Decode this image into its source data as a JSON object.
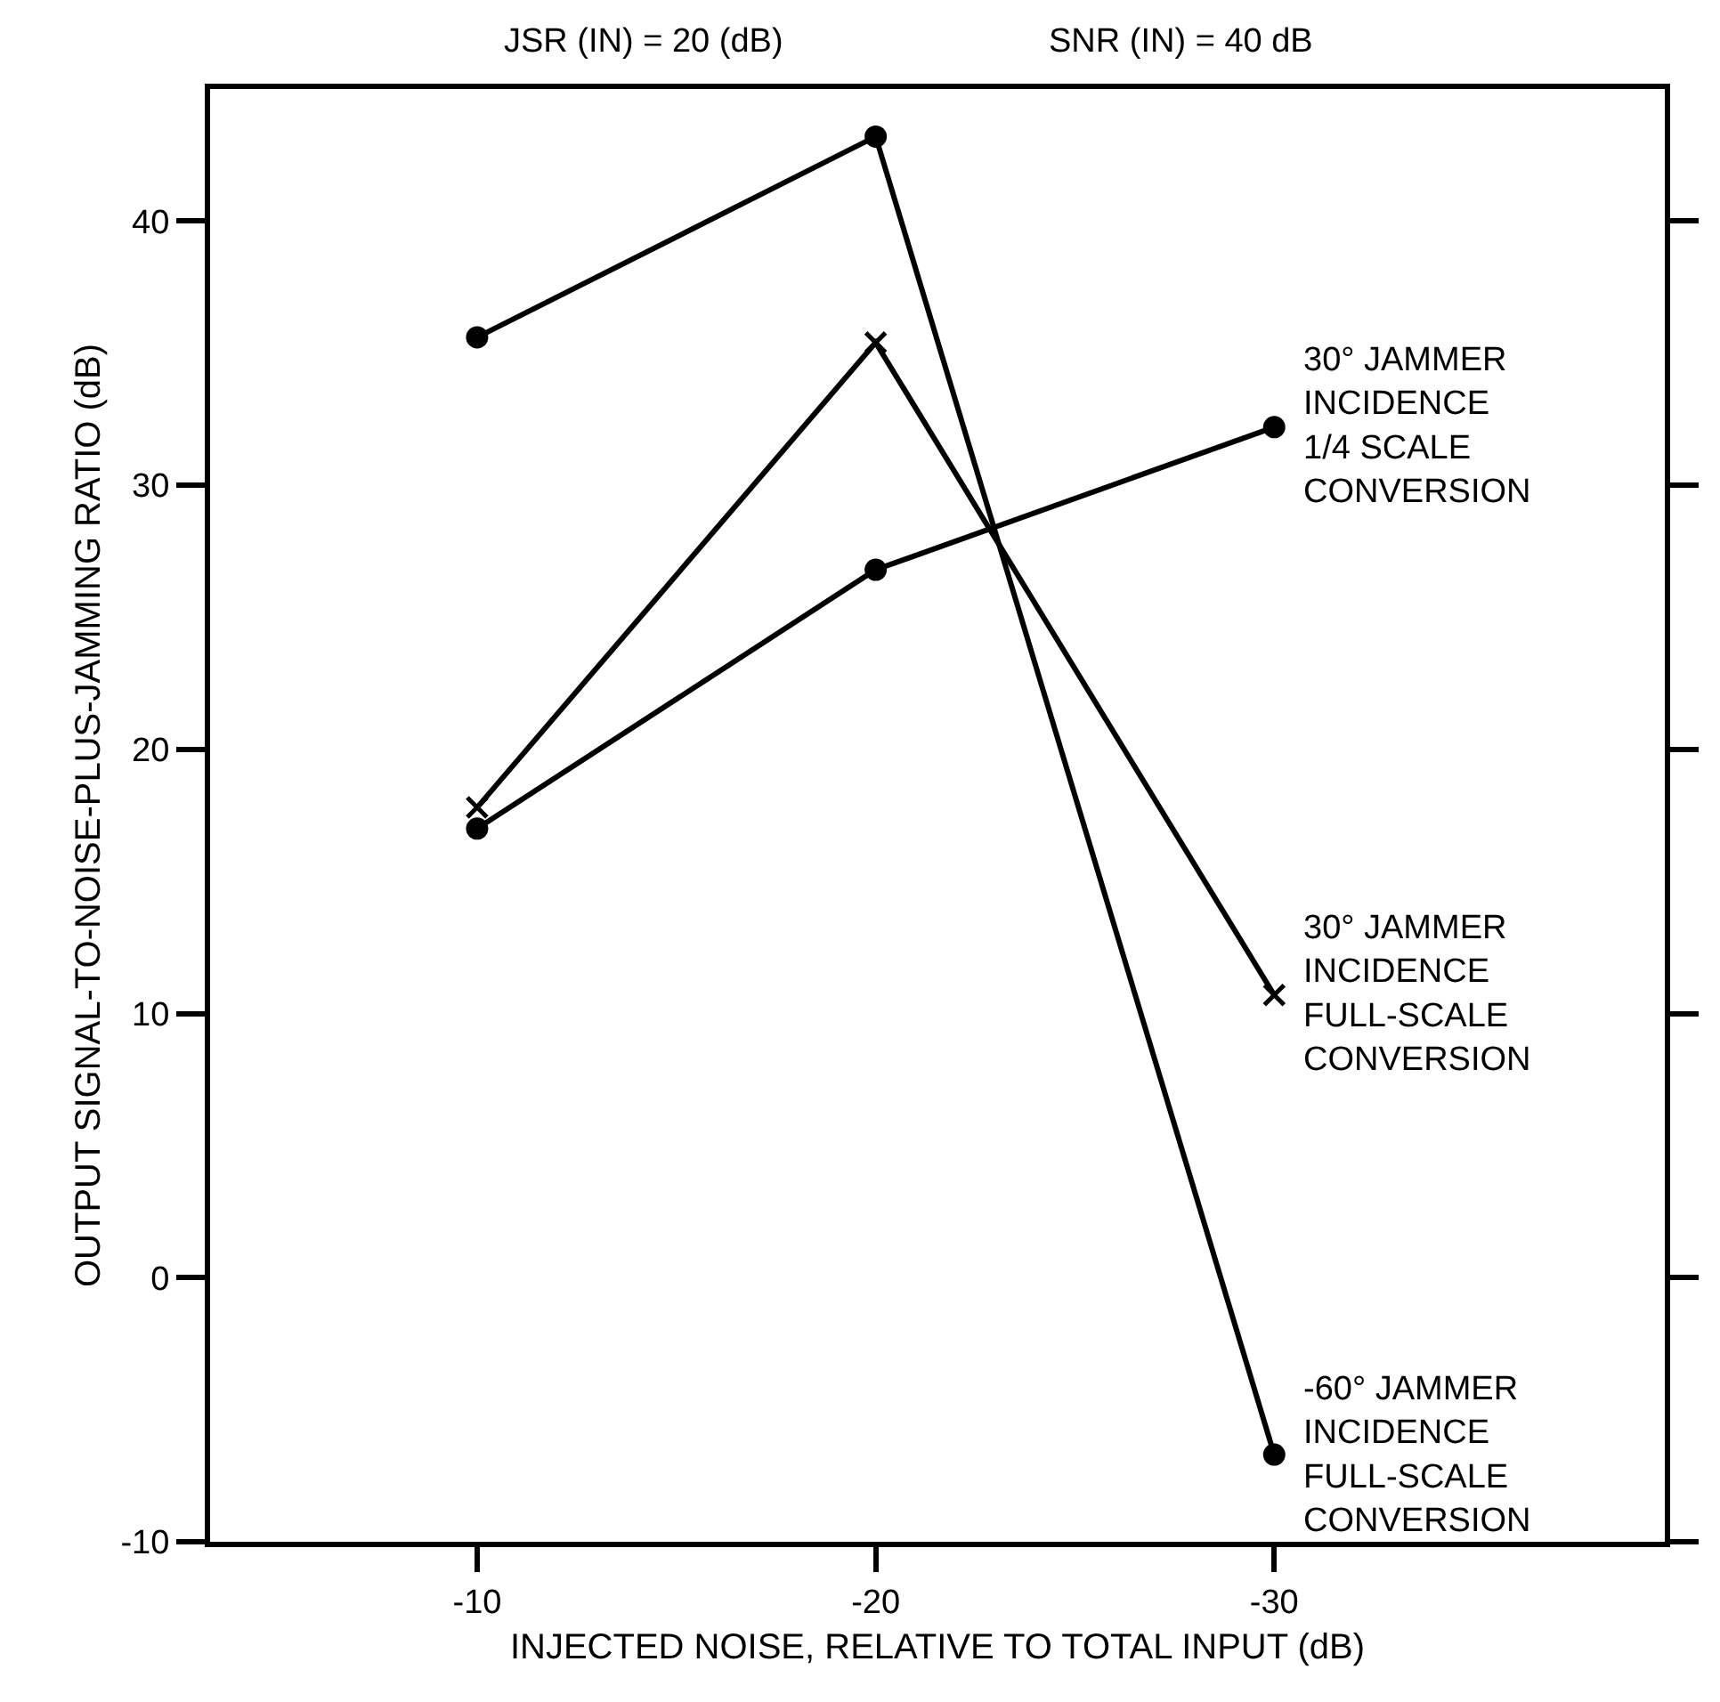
{
  "chart_data": {
    "type": "line",
    "xlabel": "INJECTED NOISE, RELATIVE TO TOTAL INPUT (dB)",
    "ylabel": "OUTPUT SIGNAL-TO-NOISE-PLUS-JAMMING RATIO (dB)",
    "annotations": [
      "JSR (IN) = 20 (dB)",
      "SNR (IN) = 40 dB"
    ],
    "x": [
      -10,
      -20,
      -30
    ],
    "xlim": [
      -3.3,
      -39.8
    ],
    "xticks": [
      -10,
      -20,
      -30
    ],
    "ylim": [
      -10,
      45
    ],
    "yticks": [
      -10,
      0,
      10,
      20,
      30,
      40
    ],
    "line_style": "solid",
    "series": [
      {
        "name": "-60° JAMMER\nINCIDENCE\nFULL-SCALE\nCONVERSION",
        "color": "#000000",
        "marker": "circle",
        "values": [
          35.6,
          43.2,
          -6.7
        ]
      },
      {
        "name": "30° JAMMER\nINCIDENCE\nFULL-SCALE\nCONVERSION",
        "color": "#000000",
        "marker": "cross",
        "values": [
          17.8,
          35.4,
          10.7
        ]
      },
      {
        "name": "30° JAMMER\nINCIDENCE\n1/4 SCALE\nCONVERSION",
        "color": "#000000",
        "marker": "circle",
        "values": [
          17.0,
          26.8,
          32.2
        ]
      }
    ]
  }
}
